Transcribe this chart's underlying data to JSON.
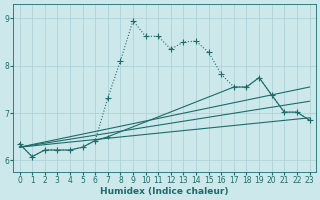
{
  "xlabel": "Humidex (Indice chaleur)",
  "xlim": [
    -0.5,
    23.5
  ],
  "ylim": [
    5.75,
    9.3
  ],
  "yticks": [
    6,
    7,
    8,
    9
  ],
  "xticks": [
    0,
    1,
    2,
    3,
    4,
    5,
    6,
    7,
    8,
    9,
    10,
    11,
    12,
    13,
    14,
    15,
    16,
    17,
    18,
    19,
    20,
    21,
    22,
    23
  ],
  "background_color": "#cce8ea",
  "line_color": "#1e6b6b",
  "grid_color": "#aacdd4",
  "series": [
    {
      "x": [
        0,
        1,
        2,
        3,
        4,
        5,
        6,
        7,
        8,
        9,
        10,
        11,
        12,
        13,
        14,
        15,
        16,
        17,
        18,
        19,
        20,
        21,
        22,
        23
      ],
      "y": [
        6.35,
        6.08,
        6.22,
        6.22,
        6.22,
        6.28,
        6.42,
        7.32,
        8.1,
        8.95,
        8.62,
        8.62,
        8.35,
        8.5,
        8.52,
        8.28,
        7.82,
        7.55,
        7.55,
        7.75,
        7.38,
        7.02,
        7.02,
        6.85
      ],
      "marker": "+",
      "linestyle": "dotted",
      "linewidth": 0.8,
      "markersize": 4
    },
    {
      "x": [
        0,
        1,
        2,
        3,
        4,
        5,
        6,
        7,
        17,
        18,
        19,
        20,
        21,
        22,
        23
      ],
      "y": [
        6.35,
        6.08,
        6.22,
        6.22,
        6.22,
        6.28,
        6.42,
        6.5,
        7.55,
        7.55,
        7.75,
        7.38,
        7.02,
        7.02,
        6.85
      ],
      "marker": "+",
      "linestyle": "solid",
      "linewidth": 0.8,
      "markersize": 3
    },
    {
      "x": [
        0,
        23
      ],
      "y": [
        6.28,
        7.55
      ],
      "marker": null,
      "linestyle": "solid",
      "linewidth": 0.8,
      "markersize": 0
    },
    {
      "x": [
        0,
        23
      ],
      "y": [
        6.28,
        7.25
      ],
      "marker": null,
      "linestyle": "solid",
      "linewidth": 0.8,
      "markersize": 0
    },
    {
      "x": [
        0,
        23
      ],
      "y": [
        6.28,
        6.9
      ],
      "marker": null,
      "linestyle": "solid",
      "linewidth": 0.8,
      "markersize": 0
    }
  ]
}
